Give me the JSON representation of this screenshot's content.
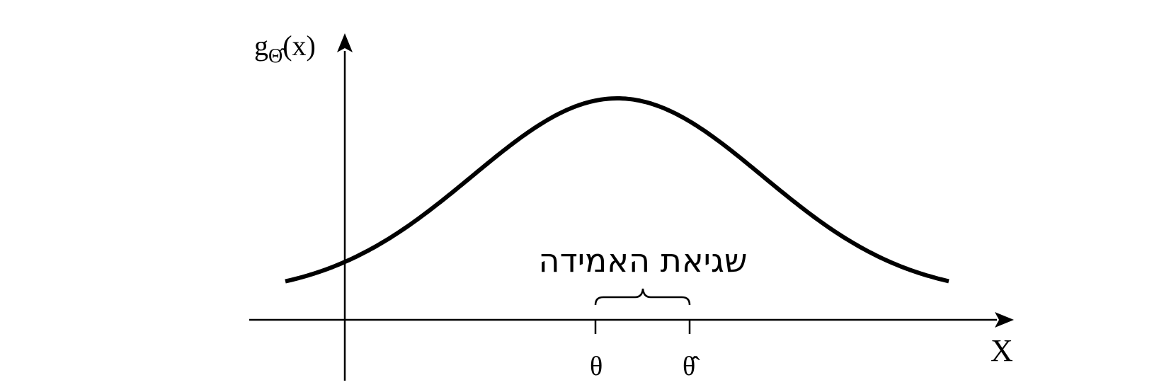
{
  "labels": {
    "y_axis_main": "g",
    "y_axis_subscript": "Θ̂",
    "y_axis_argument": "(x)",
    "x_axis": "X",
    "theta": "θ",
    "theta_hat": "θ̂",
    "brace_label": "שגיאת האמידה"
  },
  "colors": {
    "ink": "#000000",
    "background": "#ffffff"
  }
}
